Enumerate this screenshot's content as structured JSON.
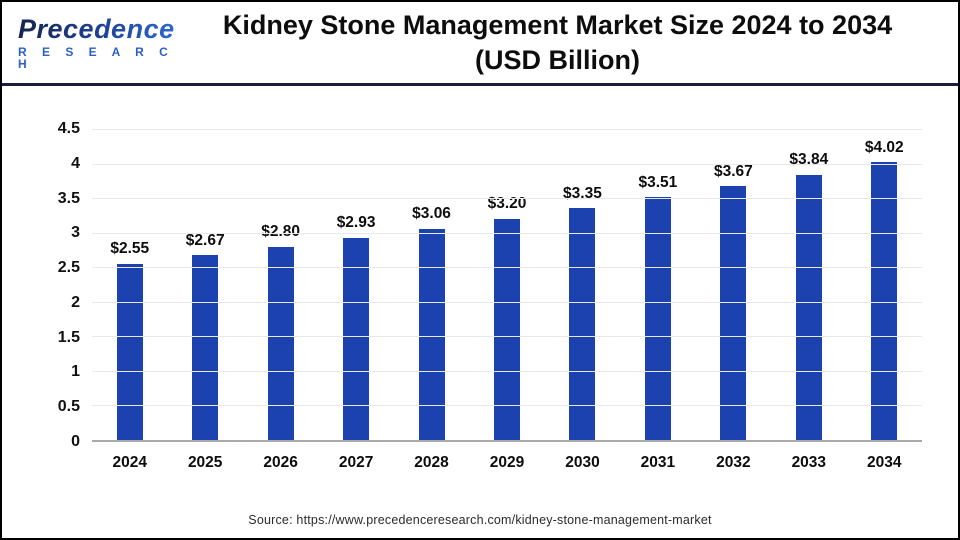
{
  "header": {
    "logo_name": "Precedence",
    "logo_sub": "R E S E A R C H",
    "title_line1": "Kidney Stone Management Market Size 2024 to 2034",
    "title_line2": "(USD Billion)"
  },
  "chart_data": {
    "type": "bar",
    "title": "Kidney Stone Management Market Size 2024 to 2034 (USD Billion)",
    "categories": [
      "2024",
      "2025",
      "2026",
      "2027",
      "2028",
      "2029",
      "2030",
      "2031",
      "2032",
      "2033",
      "2034"
    ],
    "values": [
      2.55,
      2.67,
      2.8,
      2.93,
      3.06,
      3.2,
      3.35,
      3.51,
      3.67,
      3.84,
      4.02
    ],
    "data_labels": [
      "$2.55",
      "$2.67",
      "$2.80",
      "$2.93",
      "$3.06",
      "$3.20",
      "$3.35",
      "$3.51",
      "$3.67",
      "$3.84",
      "$4.02"
    ],
    "xlabel": "",
    "ylabel": "",
    "ylim": [
      0,
      4.5
    ],
    "yticks": [
      0,
      0.5,
      1,
      1.5,
      2,
      2.5,
      3,
      3.5,
      4,
      4.5
    ],
    "ytick_labels": [
      "0",
      "0.5",
      "1",
      "1.5",
      "2",
      "2.5",
      "3",
      "3.5",
      "4",
      "4.5"
    ],
    "grid": "horizontal",
    "legend": "none",
    "bar_color": "#1b42ae"
  },
  "footer": {
    "source": "Source: https://www.precedenceresearch.com/kidney-stone-management-market"
  },
  "colors": {
    "bar": "#1b42ae",
    "divider": "#1c1d3e",
    "gridline": "#e9e9e9",
    "axis_line": "#a9a9a9",
    "title_text": "#0d0d0d",
    "logo_blue": "#2d5fc9"
  }
}
